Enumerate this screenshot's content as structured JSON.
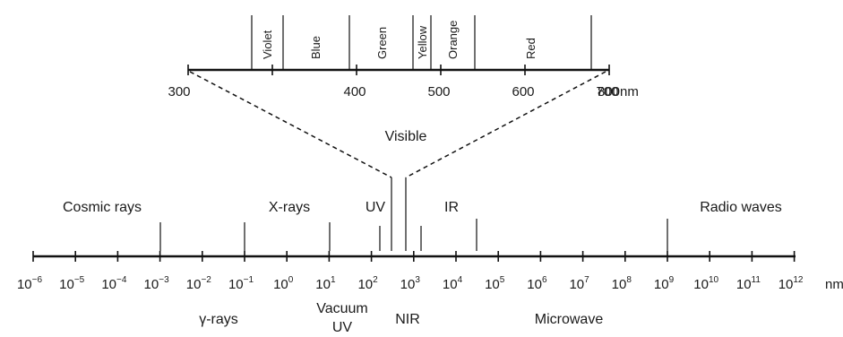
{
  "visible_scale": {
    "bands": [
      "Violet",
      "Blue",
      "Green",
      "Yellow",
      "Orange",
      "Red"
    ],
    "ticks": [
      "300",
      "400",
      "500",
      "600",
      "700",
      "800nm"
    ],
    "caption": "Visible"
  },
  "main_scale": {
    "ticks": [
      {
        "base": "10",
        "exp": "−6"
      },
      {
        "base": "10",
        "exp": "−5"
      },
      {
        "base": "10",
        "exp": "−4"
      },
      {
        "base": "10",
        "exp": "−3"
      },
      {
        "base": "10",
        "exp": "−2"
      },
      {
        "base": "10",
        "exp": "−1"
      },
      {
        "base": "10",
        "exp": "0"
      },
      {
        "base": "10",
        "exp": "1"
      },
      {
        "base": "10",
        "exp": "2"
      },
      {
        "base": "10",
        "exp": "3"
      },
      {
        "base": "10",
        "exp": "4"
      },
      {
        "base": "10",
        "exp": "5"
      },
      {
        "base": "10",
        "exp": "6"
      },
      {
        "base": "10",
        "exp": "7"
      },
      {
        "base": "10",
        "exp": "8"
      },
      {
        "base": "10",
        "exp": "9"
      },
      {
        "base": "10",
        "exp": "10"
      },
      {
        "base": "10",
        "exp": "11"
      },
      {
        "base": "10",
        "exp": "12"
      }
    ],
    "unit": "nm",
    "upper_regions": [
      "Cosmic rays",
      "X-rays",
      "UV",
      "IR",
      "Radio waves"
    ],
    "lower_regions": [
      "γ-rays",
      "Vacuum",
      "UV",
      "NIR",
      "Microwave"
    ]
  }
}
